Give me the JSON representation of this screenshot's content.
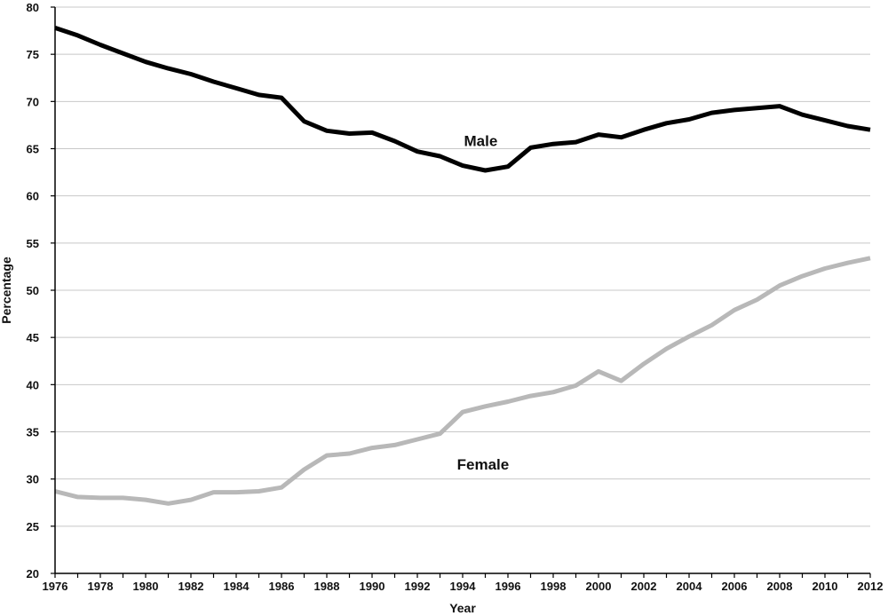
{
  "chart_data": {
    "type": "line",
    "title": "",
    "xlabel": "Year",
    "ylabel": "Percentage",
    "ylim": [
      20,
      80
    ],
    "xlim": [
      1976,
      2012
    ],
    "y_ticks": [
      20,
      25,
      30,
      35,
      40,
      45,
      50,
      55,
      60,
      65,
      70,
      75,
      80
    ],
    "x_ticks": [
      1976,
      1978,
      1980,
      1982,
      1984,
      1986,
      1988,
      1990,
      1992,
      1994,
      1996,
      1998,
      2000,
      2002,
      2004,
      2006,
      2008,
      2010,
      2012
    ],
    "grid": "horizontal",
    "legend": "none",
    "x": [
      1976,
      1977,
      1978,
      1979,
      1980,
      1981,
      1982,
      1983,
      1984,
      1985,
      1986,
      1987,
      1988,
      1989,
      1990,
      1991,
      1992,
      1993,
      1994,
      1995,
      1996,
      1997,
      1998,
      1999,
      2000,
      2001,
      2002,
      2003,
      2004,
      2005,
      2006,
      2007,
      2008,
      2009,
      2010,
      2011,
      2012
    ],
    "series": [
      {
        "name": "Male",
        "color": "#000000",
        "values": [
          77.8,
          77.0,
          76.0,
          75.1,
          74.2,
          73.5,
          72.9,
          72.1,
          71.4,
          70.7,
          70.4,
          67.9,
          66.9,
          66.6,
          66.7,
          65.8,
          64.7,
          64.2,
          63.2,
          62.7,
          63.1,
          65.1,
          65.5,
          65.7,
          66.5,
          66.2,
          67.0,
          67.7,
          68.1,
          68.8,
          69.1,
          69.3,
          69.5,
          68.6,
          68.0,
          67.4,
          67.0
        ]
      },
      {
        "name": "Female",
        "color": "#b8b8b8",
        "values": [
          28.7,
          28.1,
          28.0,
          28.0,
          27.8,
          27.4,
          27.8,
          28.6,
          28.6,
          28.7,
          29.1,
          31.0,
          32.5,
          32.7,
          33.3,
          33.6,
          34.2,
          34.8,
          37.1,
          37.7,
          38.2,
          38.8,
          39.2,
          39.9,
          41.4,
          40.4,
          42.2,
          43.8,
          45.1,
          46.3,
          47.9,
          49.0,
          50.5,
          51.5,
          52.3,
          52.9,
          53.4
        ]
      }
    ],
    "annotations": [
      "Male",
      "Female"
    ]
  }
}
